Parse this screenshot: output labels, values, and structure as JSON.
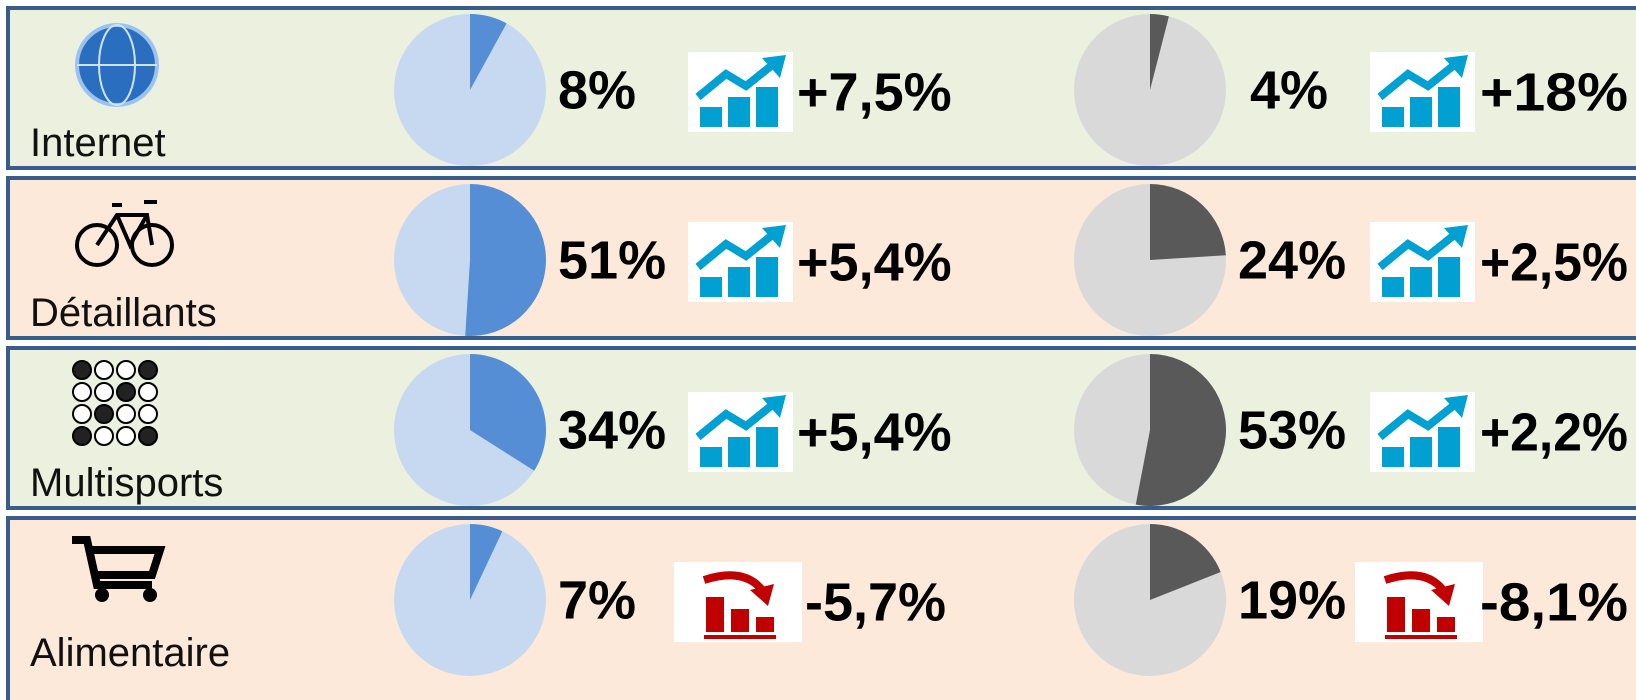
{
  "rows": [
    {
      "label": "Internet",
      "values": [
        8,
        4
      ],
      "value_labels": [
        "8%",
        "4%"
      ],
      "changes": [
        7.5,
        18
      ],
      "change_labels": [
        "+7,5%",
        "+18%"
      ]
    },
    {
      "label": "Détaillants",
      "values": [
        51,
        24
      ],
      "value_labels": [
        "51%",
        "24%"
      ],
      "changes": [
        5.4,
        2.5
      ],
      "change_labels": [
        "+5,4%",
        "+2,5%"
      ]
    },
    {
      "label": "Multisports",
      "values": [
        34,
        53
      ],
      "value_labels": [
        "34%",
        "53%"
      ],
      "changes": [
        5.4,
        2.2
      ],
      "change_labels": [
        "+5,4%",
        "+2,2%"
      ]
    },
    {
      "label": "Alimentaire",
      "values": [
        7,
        19
      ],
      "value_labels": [
        "7%",
        "19%"
      ],
      "changes": [
        -5.7,
        -8.1
      ],
      "change_labels": [
        "-5,7%",
        "-8,1%"
      ]
    }
  ],
  "colors": {
    "pie_left": [
      "#c6d9f1",
      "#558ed5"
    ],
    "pie_right": [
      "#d9d9d9",
      "#595959"
    ],
    "rows": [
      "#ebf1de",
      "#fde9d9"
    ],
    "up": "#00a0d2",
    "down": "#c00000"
  }
}
